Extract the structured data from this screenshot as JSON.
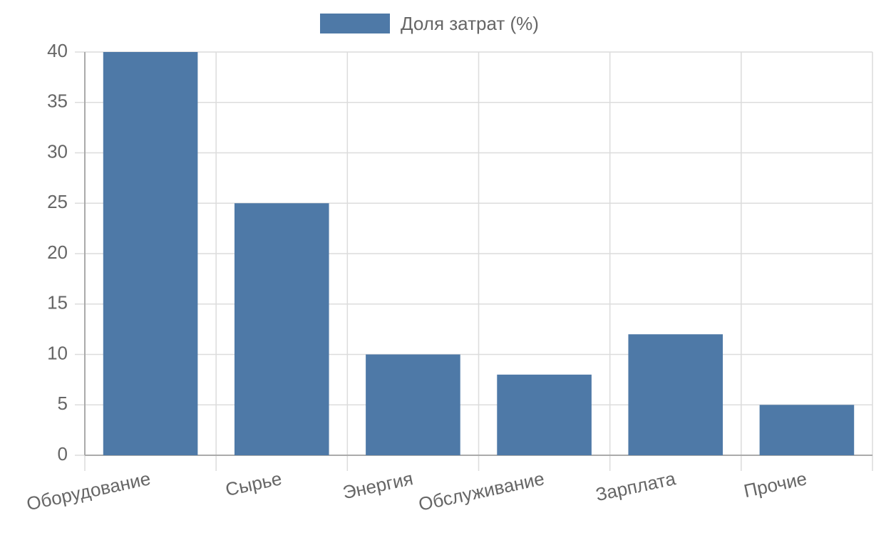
{
  "chart_data": {
    "type": "bar",
    "categories": [
      "Оборудование",
      "Сырье",
      "Энергия",
      "Обслуживание",
      "Зарплата",
      "Прочие"
    ],
    "series": [
      {
        "name": "Доля затрат (%)",
        "color": "#4e79a7",
        "values": [
          40,
          25,
          10,
          8,
          12,
          5
        ]
      }
    ],
    "ylim": [
      0,
      40
    ],
    "yticks": [
      0,
      5,
      10,
      15,
      20,
      25,
      30,
      35,
      40
    ],
    "grid": true,
    "legend": "top"
  }
}
